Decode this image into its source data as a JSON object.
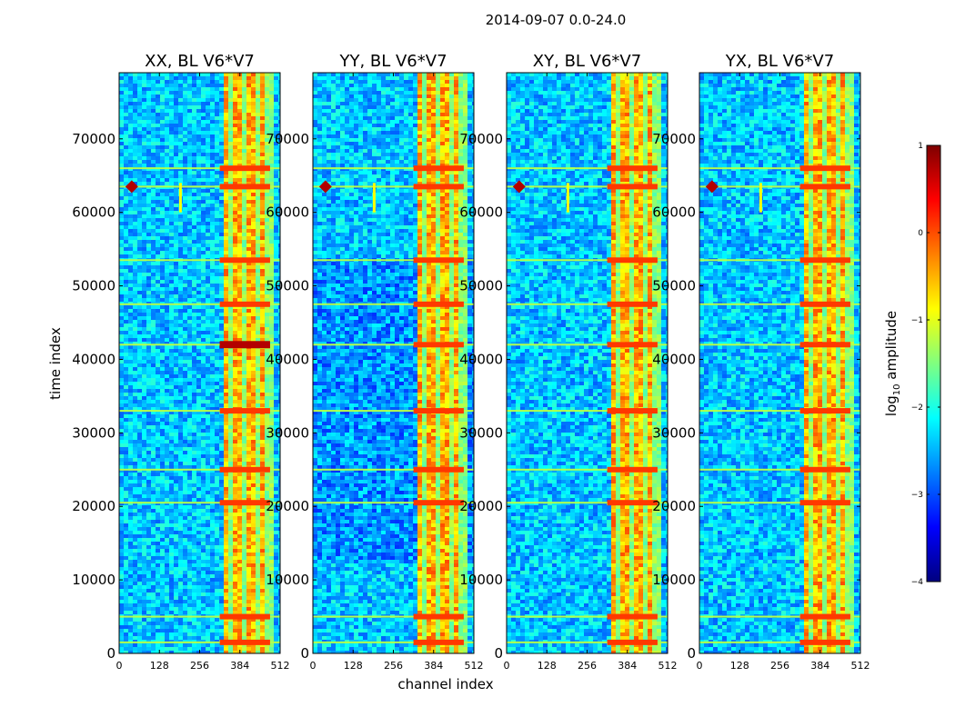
{
  "chart_data": {
    "type": "heatmap",
    "suptitle": "2014-09-07 0.0-24.0",
    "xlabel": "channel index",
    "ylabel": "time index",
    "xlim": [
      0,
      512
    ],
    "ylim": [
      0,
      79000
    ],
    "xticks": [
      0,
      128,
      256,
      384,
      512
    ],
    "yticks": [
      0,
      10000,
      20000,
      30000,
      40000,
      50000,
      60000,
      70000
    ],
    "panels": [
      {
        "title": "XX, BL V6*V7",
        "pol": "XX"
      },
      {
        "title": "YY, BL V6*V7",
        "pol": "YY"
      },
      {
        "title": "XY, BL V6*V7",
        "pol": "XY"
      },
      {
        "title": "YX, BL V6*V7",
        "pol": "YX"
      }
    ],
    "colorbar": {
      "label_base": "log",
      "label_sub": "10",
      "label_rest": " amplitude",
      "range": [
        -4,
        1
      ],
      "ticks": [
        1,
        0,
        -1,
        -2,
        -3,
        -4
      ],
      "tick_labels": [
        "1",
        "0",
        "−1",
        "−2",
        "−3",
        "−4"
      ],
      "colormap": "jet"
    },
    "bright_channel_band": [
      320,
      480
    ],
    "bright_time_rows": [
      1500,
      5000,
      20500,
      25000,
      33000,
      42000,
      47500,
      53500,
      63500,
      66000
    ],
    "rfi_spike": {
      "channel": 40,
      "time": 63500
    },
    "rfi_drip": {
      "channel": 195,
      "time_start": 64000,
      "time_end": 60000
    }
  }
}
